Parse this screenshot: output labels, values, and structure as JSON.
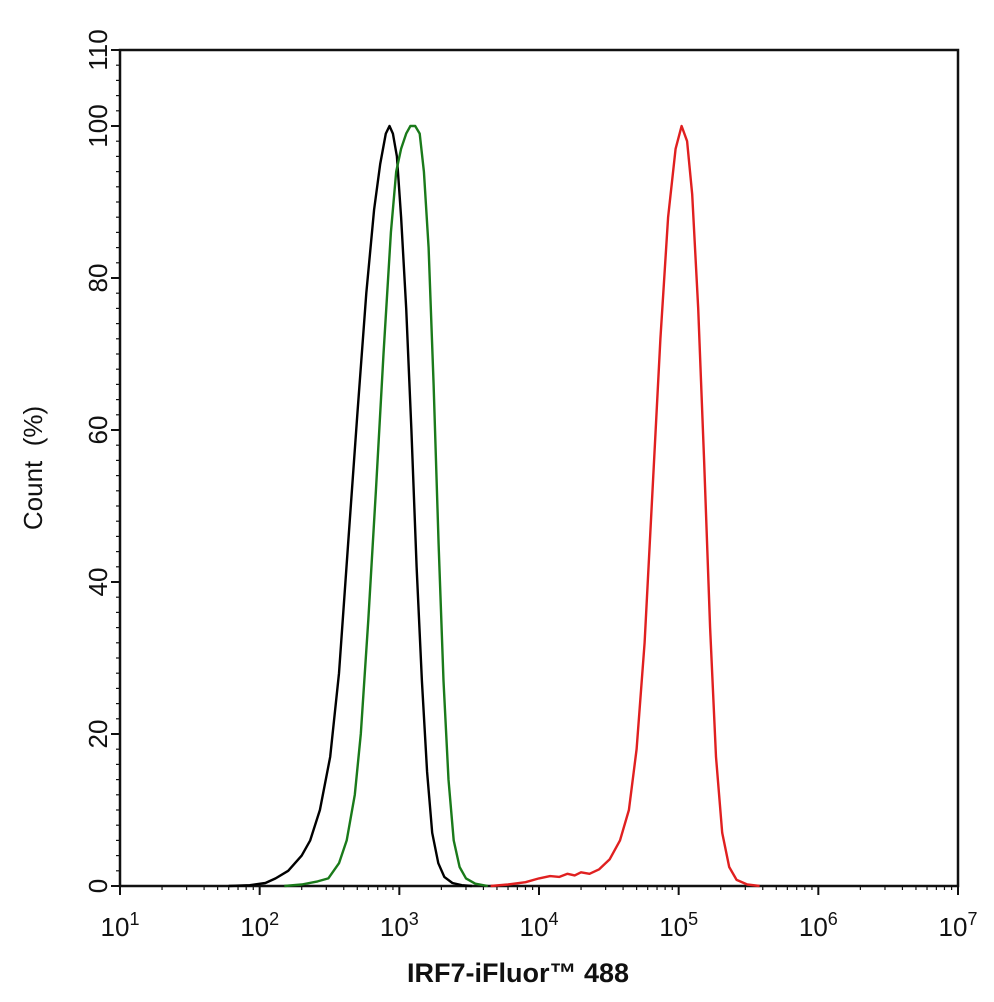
{
  "chart_data": {
    "type": "line",
    "xlabel": "IRF7-iFluor™ 488",
    "ylabel": "Count  (%)",
    "x_scale": "log",
    "xlim": [
      10,
      10000000
    ],
    "ylim": [
      0,
      110
    ],
    "x_ticks": [
      {
        "value": 10,
        "base": "10",
        "exp": "1"
      },
      {
        "value": 100,
        "base": "10",
        "exp": "2"
      },
      {
        "value": 1000,
        "base": "10",
        "exp": "3"
      },
      {
        "value": 10000,
        "base": "10",
        "exp": "4"
      },
      {
        "value": 100000,
        "base": "10",
        "exp": "5"
      },
      {
        "value": 1000000,
        "base": "10",
        "exp": "6"
      },
      {
        "value": 10000000,
        "base": "10",
        "exp": "7"
      }
    ],
    "y_ticks": [
      {
        "value": 0,
        "label": "0"
      },
      {
        "value": 20,
        "label": "20"
      },
      {
        "value": 40,
        "label": "40"
      },
      {
        "value": 60,
        "label": "60"
      },
      {
        "value": 80,
        "label": "80"
      },
      {
        "value": 100,
        "label": "100"
      },
      {
        "value": 110,
        "label": "110"
      }
    ],
    "grid": false,
    "series": [
      {
        "color": "#000000",
        "points": [
          [
            60,
            0
          ],
          [
            85,
            0.1
          ],
          [
            110,
            0.4
          ],
          [
            130,
            1
          ],
          [
            160,
            2
          ],
          [
            200,
            4
          ],
          [
            230,
            6
          ],
          [
            270,
            10
          ],
          [
            320,
            17
          ],
          [
            370,
            28
          ],
          [
            430,
            45
          ],
          [
            500,
            62
          ],
          [
            580,
            78
          ],
          [
            660,
            89
          ],
          [
            730,
            95
          ],
          [
            800,
            99
          ],
          [
            850,
            100
          ],
          [
            900,
            99
          ],
          [
            960,
            96
          ],
          [
            1030,
            88
          ],
          [
            1120,
            76
          ],
          [
            1220,
            60
          ],
          [
            1330,
            42
          ],
          [
            1450,
            27
          ],
          [
            1580,
            15
          ],
          [
            1720,
            7
          ],
          [
            1900,
            3
          ],
          [
            2100,
            1.2
          ],
          [
            2400,
            0.4
          ],
          [
            2800,
            0.1
          ],
          [
            3300,
            0
          ]
        ]
      },
      {
        "color": "#1a7a1a",
        "points": [
          [
            150,
            0
          ],
          [
            200,
            0.2
          ],
          [
            260,
            0.6
          ],
          [
            310,
            1
          ],
          [
            370,
            3
          ],
          [
            420,
            6
          ],
          [
            480,
            12
          ],
          [
            530,
            20
          ],
          [
            600,
            35
          ],
          [
            680,
            52
          ],
          [
            770,
            70
          ],
          [
            870,
            86
          ],
          [
            950,
            94
          ],
          [
            1030,
            97
          ],
          [
            1120,
            99
          ],
          [
            1200,
            100
          ],
          [
            1300,
            100
          ],
          [
            1400,
            99
          ],
          [
            1500,
            94
          ],
          [
            1620,
            84
          ],
          [
            1760,
            66
          ],
          [
            1910,
            45
          ],
          [
            2070,
            27
          ],
          [
            2250,
            14
          ],
          [
            2450,
            6
          ],
          [
            2700,
            2.5
          ],
          [
            3000,
            1
          ],
          [
            3500,
            0.3
          ],
          [
            4300,
            0
          ]
        ]
      },
      {
        "color": "#e02020",
        "points": [
          [
            4500,
            0
          ],
          [
            6000,
            0.2
          ],
          [
            8000,
            0.5
          ],
          [
            10000,
            1
          ],
          [
            12000,
            1.3
          ],
          [
            14000,
            1.2
          ],
          [
            16000,
            1.6
          ],
          [
            18000,
            1.4
          ],
          [
            20000,
            1.8
          ],
          [
            23000,
            1.6
          ],
          [
            27000,
            2.2
          ],
          [
            32000,
            3.5
          ],
          [
            38000,
            6
          ],
          [
            44000,
            10
          ],
          [
            50000,
            18
          ],
          [
            57000,
            32
          ],
          [
            65000,
            52
          ],
          [
            74000,
            72
          ],
          [
            84000,
            88
          ],
          [
            95000,
            97
          ],
          [
            105000,
            100
          ],
          [
            115000,
            98
          ],
          [
            125000,
            91
          ],
          [
            138000,
            76
          ],
          [
            152000,
            56
          ],
          [
            168000,
            34
          ],
          [
            185000,
            17
          ],
          [
            205000,
            7
          ],
          [
            230000,
            2.5
          ],
          [
            260000,
            0.8
          ],
          [
            310000,
            0.2
          ],
          [
            380000,
            0
          ]
        ]
      }
    ]
  }
}
